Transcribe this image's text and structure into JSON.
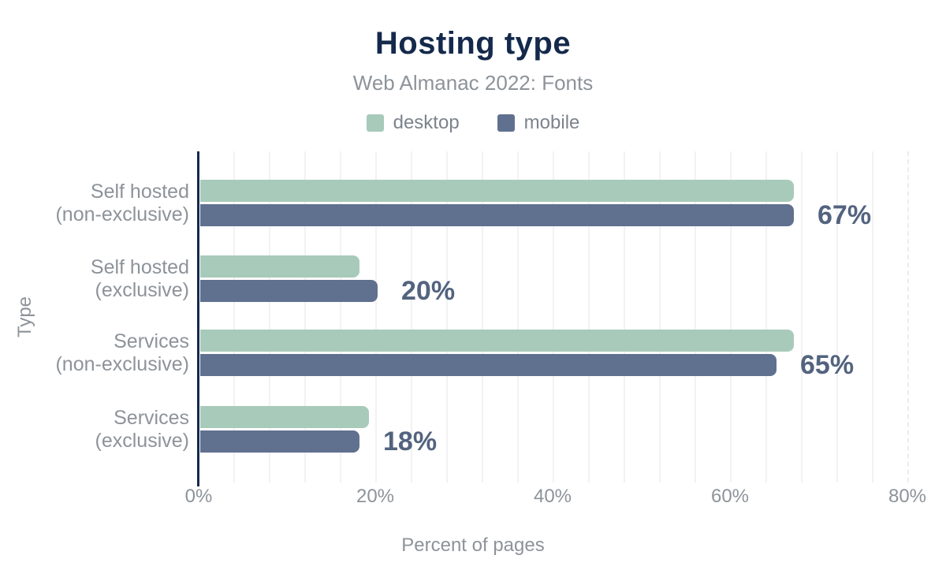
{
  "header": {
    "title": "Hosting type",
    "subtitle": "Web Almanac 2022: Fonts"
  },
  "legend": [
    {
      "name": "desktop",
      "label": "desktop",
      "color": "#a8cabb"
    },
    {
      "name": "mobile",
      "label": "mobile",
      "color": "#60708f"
    }
  ],
  "colors": {
    "title": "#14294b",
    "axis_line": "#152a4e",
    "value_label": "#53637f",
    "muted_text": "#8d9399",
    "gridline": "#f2f2f2",
    "desktop_bar": "#a8cabb",
    "mobile_bar": "#60708f"
  },
  "chart_data": {
    "type": "bar",
    "orientation": "horizontal",
    "title": "Hosting type",
    "subtitle": "Web Almanac 2022: Fonts",
    "categories": [
      "Self hosted (non-exclusive)",
      "Self hosted (exclusive)",
      "Services (non-exclusive)",
      "Services (exclusive)"
    ],
    "category_lines": [
      [
        "Self hosted",
        "(non-exclusive)"
      ],
      [
        "Self hosted",
        "(exclusive)"
      ],
      [
        "Services",
        "(non-exclusive)"
      ],
      [
        "Services",
        "(exclusive)"
      ]
    ],
    "series": [
      {
        "name": "desktop",
        "values": [
          67,
          18,
          67,
          19
        ]
      },
      {
        "name": "mobile",
        "values": [
          67,
          20,
          65,
          18
        ]
      }
    ],
    "value_labels": [
      "67%",
      "20%",
      "65%",
      "18%"
    ],
    "xlabel": "Percent of pages",
    "ylabel": "Type",
    "x_ticks": [
      "0%",
      "20%",
      "40%",
      "60%",
      "80%"
    ],
    "x_tick_values": [
      0,
      20,
      40,
      60,
      80
    ],
    "xlim": [
      0,
      80
    ],
    "grid": "vertical, minor every 4%, dashed line at 80%",
    "legend_position": "top"
  }
}
